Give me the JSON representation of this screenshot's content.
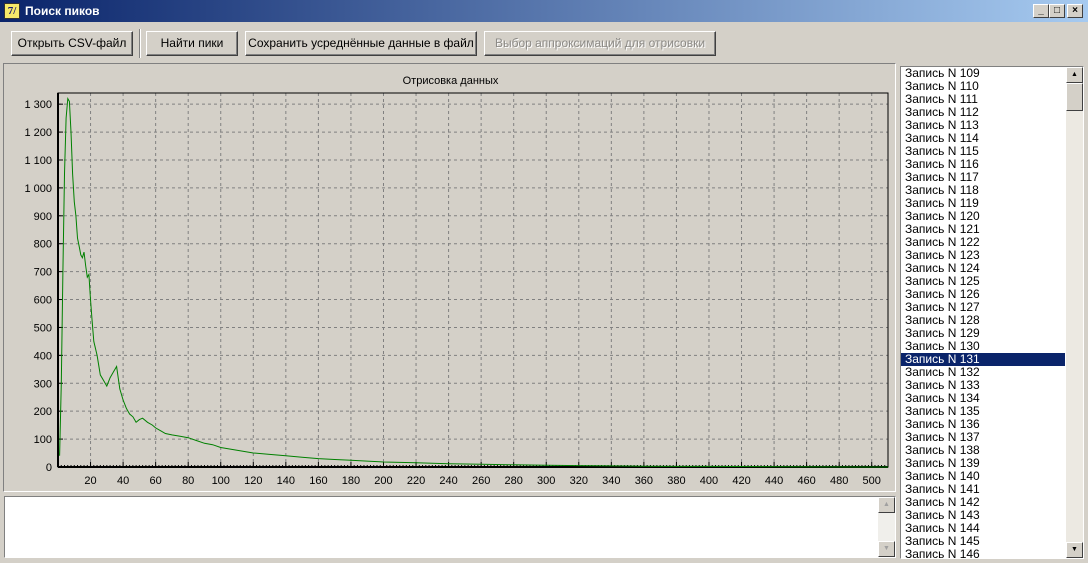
{
  "window": {
    "title": "Поиск пиков",
    "icon_glyph": "7/",
    "controls": {
      "minimize": "_",
      "maximize": "□",
      "close": "×"
    }
  },
  "toolbar": {
    "open_csv_label": "Открыть CSV-файл",
    "find_peaks_label": "Найти пики",
    "save_averaged_label": "Сохранить усреднённые данные в файл",
    "choose_approx_label": "Выбор аппроксимаций для отрисовки"
  },
  "chart_data": {
    "type": "line",
    "title": "Отрисовка данных",
    "xlim": [
      0,
      510
    ],
    "ylim": [
      0,
      1340
    ],
    "x_ticks": [
      20,
      40,
      60,
      80,
      100,
      120,
      140,
      160,
      180,
      200,
      220,
      240,
      260,
      280,
      300,
      320,
      340,
      360,
      380,
      400,
      420,
      440,
      460,
      480,
      500
    ],
    "x_tick_labels": [
      "20",
      "40",
      "60",
      "80",
      "100",
      "120",
      "140",
      "160",
      "180",
      "200",
      "220",
      "240",
      "260",
      "280",
      "300",
      "320",
      "340",
      "360",
      "380",
      "400",
      "420",
      "440",
      "460",
      "480",
      "500"
    ],
    "y_ticks": [
      0,
      100,
      200,
      300,
      400,
      500,
      600,
      700,
      800,
      900,
      1000,
      1100,
      1200,
      1300
    ],
    "y_tick_labels": [
      "0",
      "100",
      "200",
      "300",
      "400",
      "500",
      "600",
      "700",
      "800",
      "900",
      "1 000",
      "1 100",
      "1 200",
      "1 300"
    ],
    "grid": true,
    "line_color": "#008000",
    "series": [
      {
        "x": [
          1,
          2,
          3,
          4,
          5,
          6,
          7,
          8,
          9,
          10,
          11,
          12,
          13,
          14,
          15,
          16,
          17,
          18,
          19,
          20,
          21,
          22,
          24,
          26,
          28,
          30,
          32,
          34,
          36,
          38,
          40,
          42,
          44,
          46,
          48,
          50,
          52,
          55,
          58,
          60,
          63,
          66,
          70,
          75,
          80,
          85,
          90,
          95,
          100,
          110,
          120,
          130,
          140,
          150,
          160,
          170,
          180,
          190,
          200,
          220,
          240,
          260,
          280,
          300,
          320,
          340,
          360,
          380,
          400,
          450,
          500,
          510
        ],
        "y": [
          40,
          300,
          700,
          1050,
          1250,
          1320,
          1310,
          1200,
          1050,
          950,
          900,
          820,
          790,
          760,
          750,
          770,
          720,
          680,
          690,
          600,
          520,
          450,
          400,
          330,
          310,
          290,
          320,
          340,
          360,
          280,
          240,
          210,
          190,
          180,
          160,
          170,
          175,
          160,
          150,
          140,
          130,
          120,
          115,
          110,
          105,
          95,
          85,
          80,
          70,
          60,
          50,
          45,
          40,
          35,
          30,
          27,
          24,
          21,
          18,
          15,
          12,
          10,
          8,
          6,
          5,
          4,
          3,
          2,
          2,
          1,
          0,
          0
        ]
      }
    ]
  },
  "records": {
    "items": [
      "Запись N 109",
      "Запись N 110",
      "Запись N 111",
      "Запись N 112",
      "Запись N 113",
      "Запись N 114",
      "Запись N 115",
      "Запись N 116",
      "Запись N 117",
      "Запись N 118",
      "Запись N 119",
      "Запись N 120",
      "Запись N 121",
      "Запись N 122",
      "Запись N 123",
      "Запись N 124",
      "Запись N 125",
      "Запись N 126",
      "Запись N 127",
      "Запись N 128",
      "Запись N 129",
      "Запись N 130",
      "Запись N 131",
      "Запись N 132",
      "Запись N 133",
      "Запись N 134",
      "Запись N 135",
      "Запись N 136",
      "Запись N 137",
      "Запись N 138",
      "Запись N 139",
      "Запись N 140",
      "Запись N 141",
      "Запись N 142",
      "Запись N 143",
      "Запись N 144",
      "Запись N 145",
      "Запись N 146"
    ],
    "selected_item": "Запись N 131"
  },
  "log_memo": {
    "text": ""
  }
}
